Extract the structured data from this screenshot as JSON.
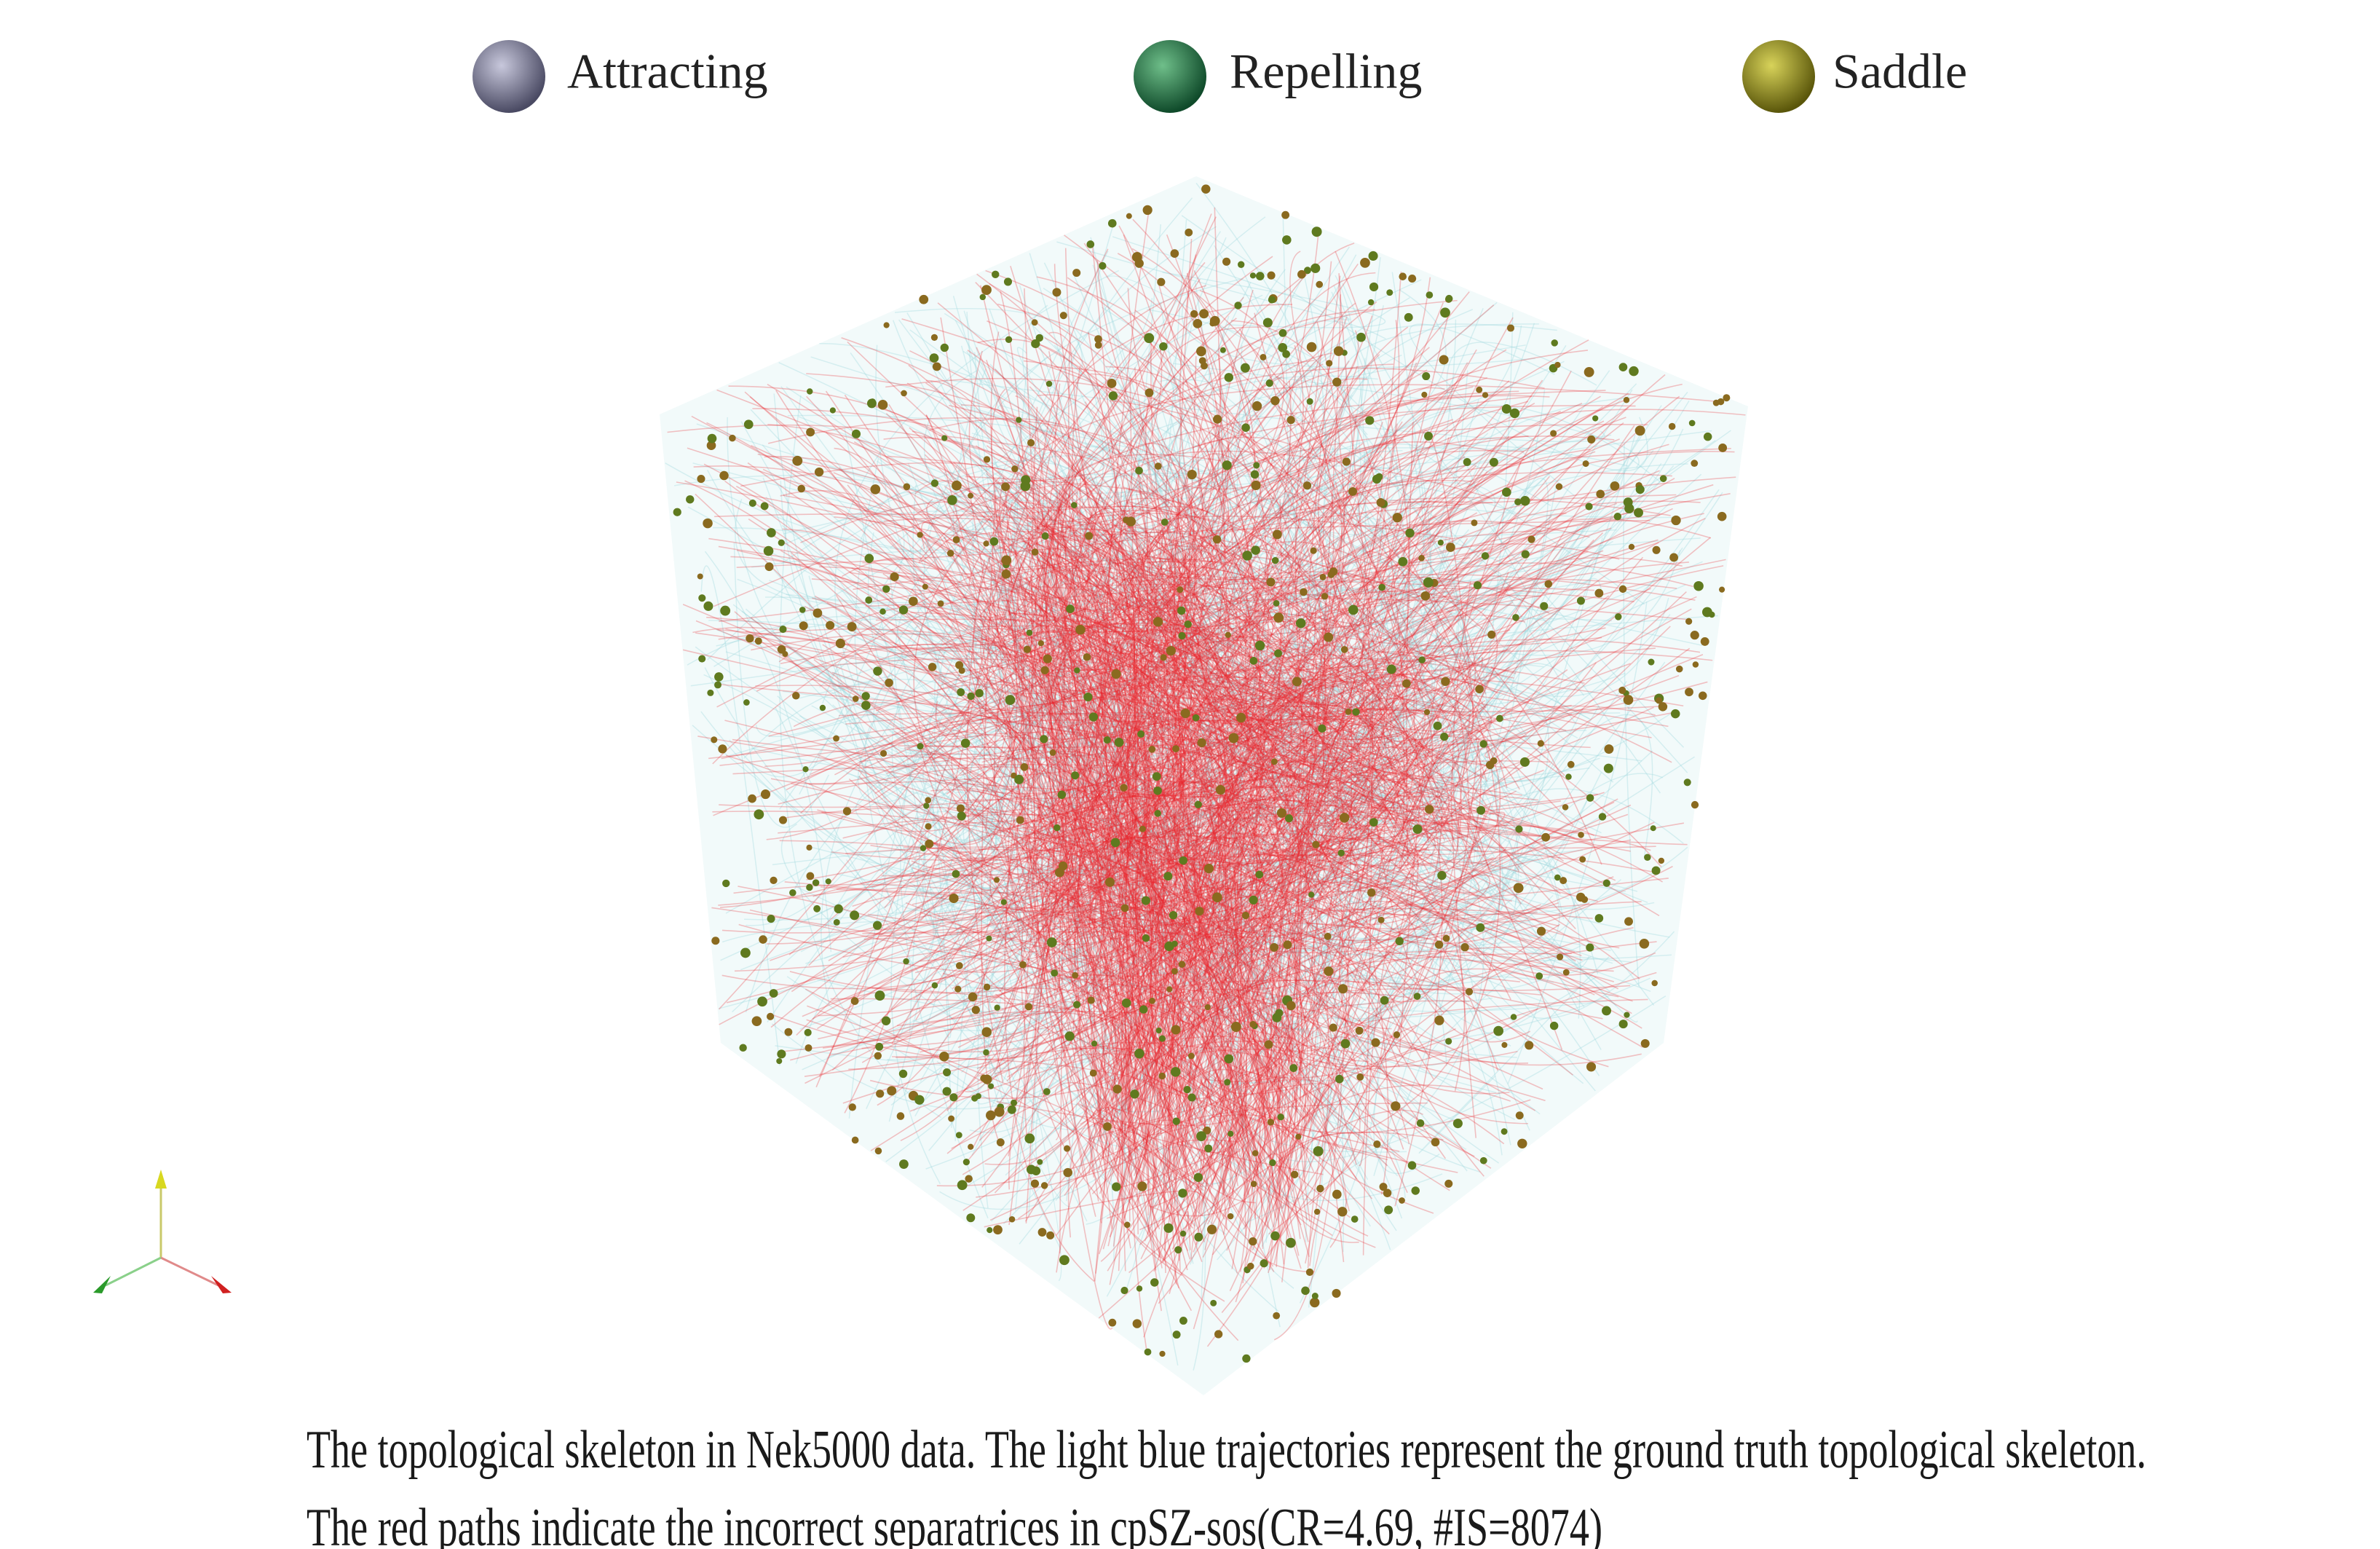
{
  "legend": {
    "items": [
      {
        "label": "Attracting"
      },
      {
        "label": "Repelling"
      },
      {
        "label": "Saddle"
      }
    ]
  },
  "caption": {
    "lines": [
      "The topological skeleton in Nek5000 data. The light blue trajectories represent the ground truth topological skeleton.",
      "The red paths indicate the incorrect separatrices in cpSZ-sos(CR=4.69, #IS=8074)"
    ]
  }
}
